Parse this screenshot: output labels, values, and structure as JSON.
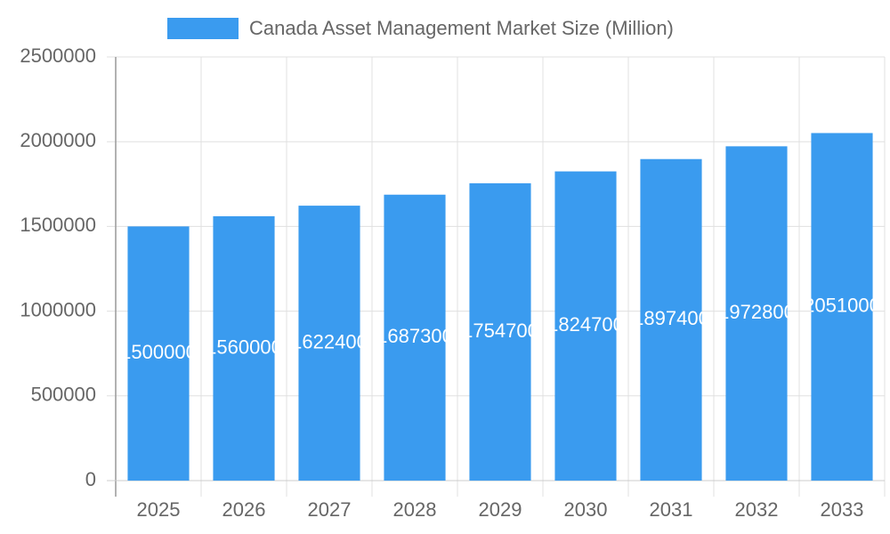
{
  "chart_data": {
    "type": "bar",
    "categories": [
      "2025",
      "2026",
      "2027",
      "2028",
      "2029",
      "2030",
      "2031",
      "2032",
      "2033"
    ],
    "series": [
      {
        "name": "Canada Asset Management Market Size (Million)",
        "color": "#3a9bef",
        "values": [
          1500000,
          1560000,
          1622400,
          1687300,
          1754700,
          1824700,
          1897400,
          1972800,
          2051000
        ]
      }
    ],
    "ylim": [
      0,
      2500000
    ],
    "yticks": [
      0,
      500000,
      1000000,
      1500000,
      2000000,
      2500000
    ],
    "grid": true,
    "legend": "top",
    "data_labels": true
  }
}
